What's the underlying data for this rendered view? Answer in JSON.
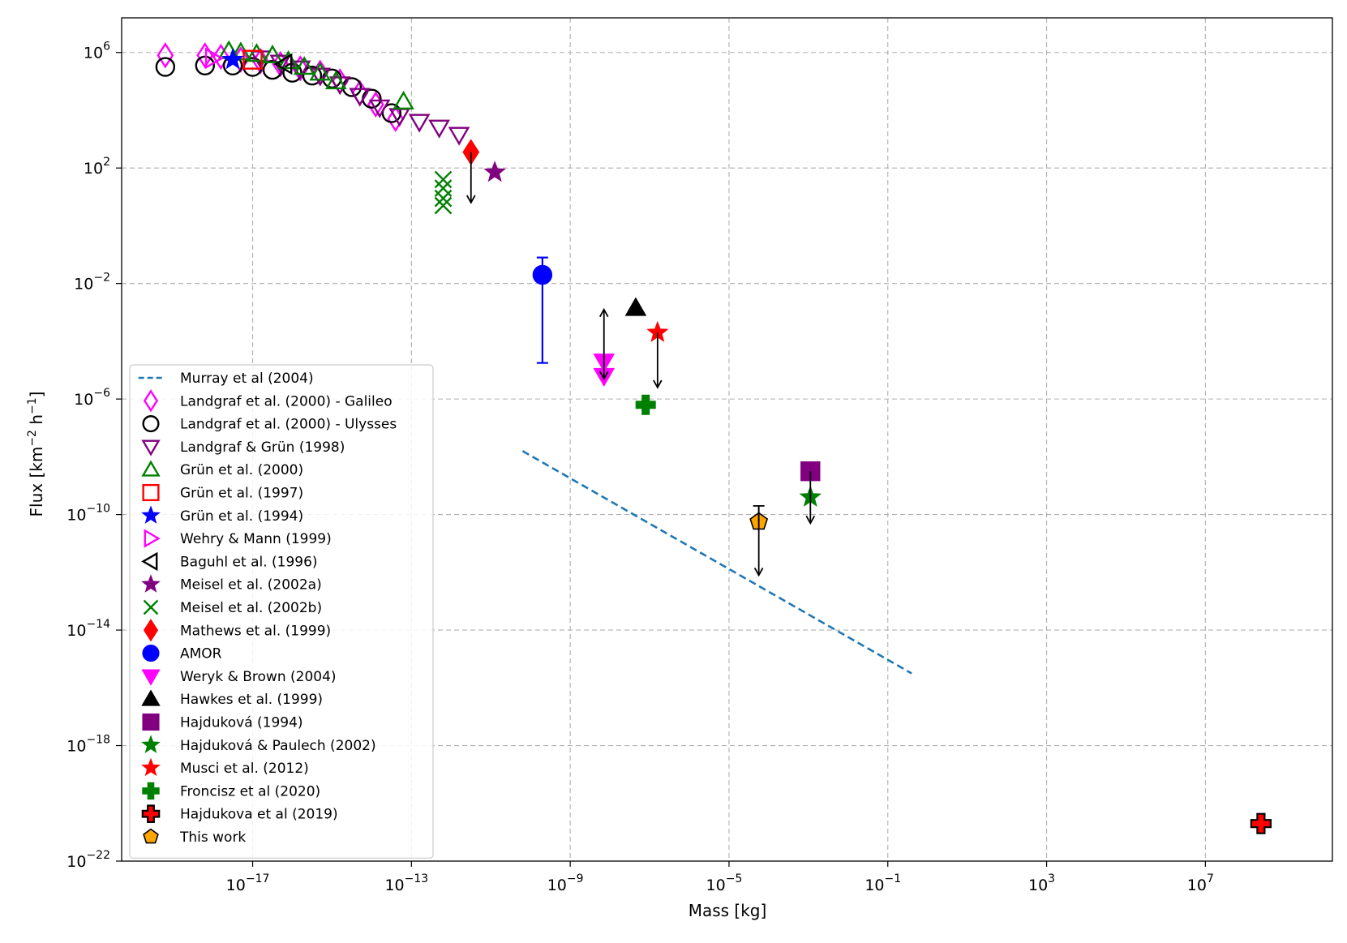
{
  "chart_data": {
    "type": "scatter",
    "title": "",
    "xlabel": "Mass [kg]",
    "ylabel": "Flux [km^-2 h^-1]",
    "xscale": "log",
    "yscale": "log",
    "xlim_log10": [
      -20.3,
      10.2
    ],
    "ylim_log10": [
      -22,
      7.2
    ],
    "grid": true,
    "legend_position": "bottom-left",
    "x_ticks": [
      {
        "exp": -17,
        "base": "10",
        "sup": "−17"
      },
      {
        "exp": -13,
        "base": "10",
        "sup": "−13"
      },
      {
        "exp": -9,
        "base": "10",
        "sup": "−9"
      },
      {
        "exp": -5,
        "base": "10",
        "sup": "−5"
      },
      {
        "exp": -1,
        "base": "10",
        "sup": "−1"
      },
      {
        "exp": 3,
        "base": "10",
        "sup": "3"
      },
      {
        "exp": 7,
        "base": "10",
        "sup": "7"
      }
    ],
    "y_ticks": [
      {
        "exp": 6,
        "base": "10",
        "sup": "6"
      },
      {
        "exp": 2,
        "base": "10",
        "sup": "2"
      },
      {
        "exp": -2,
        "base": "10",
        "sup": "−2"
      },
      {
        "exp": -6,
        "base": "10",
        "sup": "−6"
      },
      {
        "exp": -10,
        "base": "10",
        "sup": "−10"
      },
      {
        "exp": -14,
        "base": "10",
        "sup": "−14"
      },
      {
        "exp": -18,
        "base": "10",
        "sup": "−18"
      },
      {
        "exp": -22,
        "base": "10",
        "sup": "−22"
      }
    ],
    "series": [
      {
        "name": "Murray et al (2004)",
        "marker": "line",
        "color": "#1f77b4",
        "points": [
          [
            -10.2,
            -7.8
          ],
          [
            -0.4,
            -15.5
          ]
        ]
      },
      {
        "name": "Landgraf et al. (2000) - Galileo",
        "marker": "diamond",
        "fill": "none",
        "color": "#ff00ff",
        "points": [
          [
            -19.2,
            5.9
          ],
          [
            -18.2,
            5.9
          ],
          [
            -17.8,
            5.85
          ],
          [
            -17.3,
            5.75
          ],
          [
            -16.8,
            5.7
          ],
          [
            -16.3,
            5.6
          ],
          [
            -15.8,
            5.45
          ],
          [
            -15.3,
            5.3
          ],
          [
            -14.8,
            5.0
          ],
          [
            -14.3,
            4.6
          ],
          [
            -13.9,
            4.2
          ],
          [
            -13.4,
            3.7
          ]
        ]
      },
      {
        "name": "Landgraf et al. (2000) - Ulysses",
        "marker": "circle",
        "fill": "none",
        "color": "#000000",
        "points": [
          [
            -19.2,
            5.5
          ],
          [
            -18.2,
            5.55
          ],
          [
            -17.5,
            5.55
          ],
          [
            -17.0,
            5.5
          ],
          [
            -16.5,
            5.4
          ],
          [
            -16.0,
            5.3
          ],
          [
            -15.5,
            5.2
          ],
          [
            -15.0,
            5.1
          ],
          [
            -14.5,
            4.8
          ],
          [
            -14.0,
            4.4
          ],
          [
            -13.5,
            3.9
          ]
        ]
      },
      {
        "name": "Landgraf & Grün (1998)",
        "marker": "triangle-down",
        "fill": "none",
        "color": "#800080",
        "points": [
          [
            -16.8,
            5.8
          ],
          [
            -16.3,
            5.65
          ],
          [
            -15.8,
            5.45
          ],
          [
            -15.3,
            5.2
          ],
          [
            -14.8,
            4.9
          ],
          [
            -14.3,
            4.5
          ],
          [
            -13.8,
            4.1
          ],
          [
            -13.3,
            3.8
          ],
          [
            -12.8,
            3.6
          ],
          [
            -12.3,
            3.4
          ],
          [
            -11.8,
            3.15
          ]
        ]
      },
      {
        "name": "Grün et al. (2000)",
        "marker": "triangle-up",
        "fill": "none",
        "color": "#008000",
        "points": [
          [
            -17.6,
            6.05
          ],
          [
            -17.3,
            6.0
          ],
          [
            -16.9,
            5.95
          ],
          [
            -16.5,
            5.9
          ],
          [
            -16.1,
            5.7
          ],
          [
            -15.7,
            5.5
          ],
          [
            -15.3,
            5.3
          ],
          [
            -14.9,
            5.0
          ],
          [
            -13.2,
            4.3
          ]
        ]
      },
      {
        "name": "Grün et al. (1997)",
        "marker": "square",
        "fill": "none",
        "color": "#ff0000",
        "points": [
          [
            -17.0,
            5.75
          ]
        ]
      },
      {
        "name": "Grün et al. (1994)",
        "marker": "star",
        "fill": "#0000ff",
        "color": "#0000ff",
        "points": [
          [
            -17.5,
            5.75
          ]
        ]
      },
      {
        "name": "Wehry & Mann (1999)",
        "marker": "triangle-right",
        "fill": "none",
        "color": "#ff00ff",
        "points": [
          [
            -18.0,
            5.8
          ]
        ]
      },
      {
        "name": "Baguhl et al. (1996)",
        "marker": "triangle-left",
        "fill": "none",
        "color": "#000000",
        "points": [
          [
            -16.2,
            5.6
          ]
        ]
      },
      {
        "name": "Meisel et al. (2002a)",
        "marker": "star",
        "fill": "#800080",
        "color": "#800080",
        "points": [
          [
            -10.9,
            1.85
          ]
        ]
      },
      {
        "name": "Meisel et al. (2002b)",
        "marker": "x",
        "fill": "none",
        "color": "#008000",
        "points": [
          [
            -12.2,
            1.6
          ],
          [
            -12.2,
            1.3
          ],
          [
            -12.2,
            0.95
          ],
          [
            -12.2,
            0.7
          ]
        ]
      },
      {
        "name": "Mathews et al. (1999)",
        "marker": "diamond",
        "fill": "#ff0000",
        "color": "#ff0000",
        "points": [
          [
            -11.5,
            2.55
          ]
        ]
      },
      {
        "name": "AMOR",
        "marker": "circle",
        "fill": "#0000ff",
        "color": "#0000ff",
        "points": [
          [
            -9.7,
            -1.7
          ]
        ]
      },
      {
        "name": "Weryk & Brown (2004)",
        "marker": "triangle-down",
        "fill": "#ff00ff",
        "color": "#ff00ff",
        "points": [
          [
            -8.15,
            -4.7
          ],
          [
            -8.15,
            -5.2
          ]
        ]
      },
      {
        "name": "Hawkes et al. (1999)",
        "marker": "triangle-up",
        "fill": "#000000",
        "color": "#000000",
        "points": [
          [
            -7.35,
            -2.85
          ]
        ]
      },
      {
        "name": "Hajduková (1994)",
        "marker": "square",
        "fill": "#800080",
        "color": "#800080",
        "points": [
          [
            -2.95,
            -8.5
          ]
        ]
      },
      {
        "name": "Hajduková & Paulech (2002)",
        "marker": "star",
        "fill": "#008000",
        "color": "#008000",
        "points": [
          [
            -2.95,
            -9.4
          ]
        ]
      },
      {
        "name": "Musci et al. (2012)",
        "marker": "star",
        "fill": "#ff0000",
        "color": "#ff0000",
        "points": [
          [
            -6.8,
            -3.7
          ]
        ]
      },
      {
        "name": "Froncisz et al (2020)",
        "marker": "plus",
        "fill": "#008000",
        "color": "#008000",
        "points": [
          [
            -7.1,
            -6.2
          ]
        ]
      },
      {
        "name": "Hajdukova et al (2019)",
        "marker": "plus",
        "fill": "#ff0000",
        "color": "#000000",
        "points": [
          [
            8.4,
            -20.7
          ]
        ]
      },
      {
        "name": "This work",
        "marker": "pentagon",
        "fill": "#ffa500",
        "color": "#000000",
        "points": [
          [
            -4.25,
            -10.25
          ]
        ]
      }
    ],
    "error_bars": [
      {
        "series": "AMOR",
        "x": -9.7,
        "y_low": -4.75,
        "y_high": -1.1,
        "color": "#0000ff"
      }
    ],
    "arrows": [
      {
        "x": -11.5,
        "y_from": 2.55,
        "y_to": 0.8,
        "direction": "down"
      },
      {
        "x": -8.15,
        "y_from": -5.3,
        "y_to": -2.9,
        "direction": "up-down"
      },
      {
        "x": -6.8,
        "y_from": -3.7,
        "y_to": -5.6,
        "direction": "down"
      },
      {
        "x": -2.95,
        "y_from": -8.5,
        "y_to": -10.3,
        "direction": "down"
      },
      {
        "x": -4.25,
        "y_from": -9.7,
        "y_to": -12.1,
        "direction": "down"
      },
      {
        "x": -4.25,
        "y_from": -10.25,
        "y_to": -9.7,
        "direction": "cap"
      }
    ]
  }
}
